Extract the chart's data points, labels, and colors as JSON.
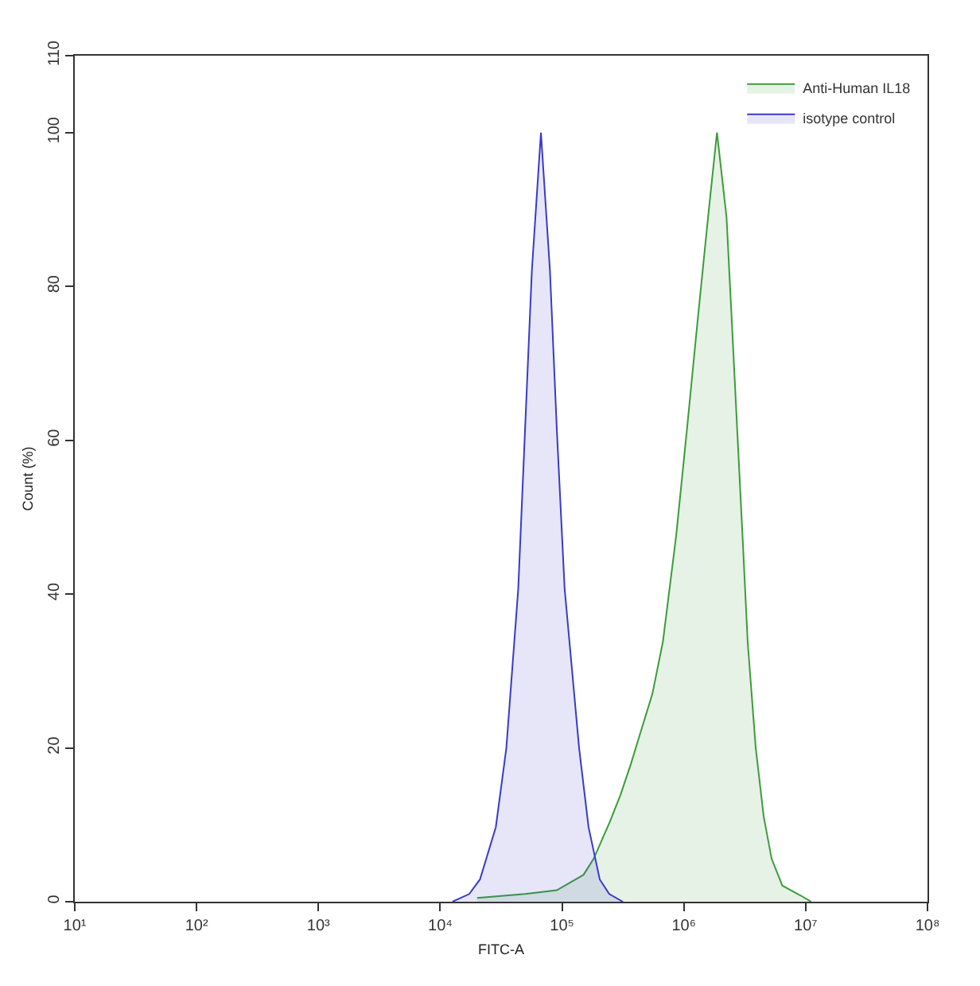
{
  "chart_data": {
    "type": "area",
    "xlabel": "FITC-A",
    "ylabel": "Count (%)",
    "log": "x",
    "xlim": [
      10,
      100000000
    ],
    "xticks": [
      {
        "value": 10,
        "label": "10¹"
      },
      {
        "value": 100,
        "label": "10²"
      },
      {
        "value": 1000,
        "label": "10³"
      },
      {
        "value": 10000,
        "label": "10⁴"
      },
      {
        "value": 100000,
        "label": "10⁵"
      },
      {
        "value": 1000000,
        "label": "10⁶"
      },
      {
        "value": 10000000,
        "label": "10⁷"
      },
      {
        "value": 100000000,
        "label": "10⁸"
      }
    ],
    "ylim": [
      0,
      110
    ],
    "yticks": [
      0,
      20,
      40,
      60,
      80,
      100,
      110
    ],
    "legend": "top right",
    "series": [
      {
        "name": "Anti-Human IL18",
        "color": "#3c9c3c",
        "x": [
          20100,
          49700,
          90600,
          150000,
          182000,
          247000,
          302000,
          369000,
          429000,
          551000,
          673000,
          865000,
          1060000,
          1290000,
          1580000,
          1870000,
          2240000,
          2480000,
          2740000,
          3030000,
          3340000,
          3890000,
          4520000,
          5250000,
          6430000,
          9100000,
          11100000
        ],
        "values": [
          0.5,
          1,
          1.5,
          3.5,
          5.6,
          10.4,
          13.9,
          18,
          21.4,
          27,
          33.8,
          47.6,
          61.4,
          75.2,
          89,
          100,
          89,
          75.2,
          61.4,
          47.6,
          33.8,
          20,
          11.1,
          5.6,
          2.1,
          0.8,
          0
        ]
      },
      {
        "name": "isotype control",
        "color": "#3a3ac8",
        "x": [
          12600,
          17300,
          21200,
          28600,
          34900,
          43700,
          49700,
          56500,
          67100,
          79600,
          90600,
          105000,
          138000,
          165000,
          204000,
          244000,
          316000
        ],
        "values": [
          0,
          1,
          2.9,
          9.7,
          20,
          40.7,
          61.4,
          82,
          100,
          82,
          61.4,
          40.7,
          20,
          9.7,
          2.9,
          1,
          0
        ]
      }
    ]
  }
}
